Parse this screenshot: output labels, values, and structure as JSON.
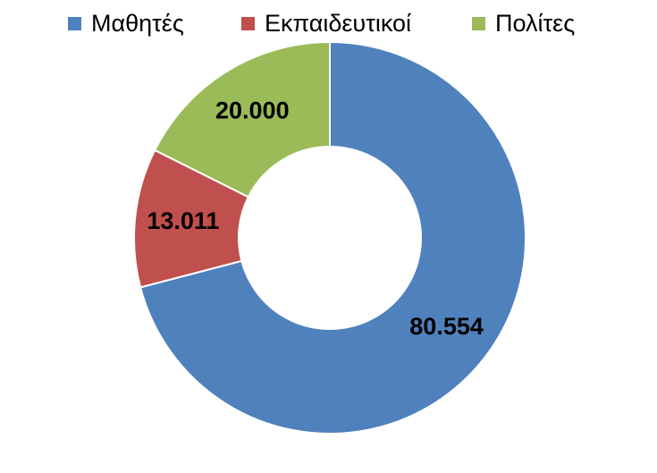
{
  "chart_data": {
    "type": "donut",
    "categories": [
      "Μαθητές",
      "Εκπαιδευτικοί",
      "Πολίτες"
    ],
    "values": [
      80554,
      13011,
      20000
    ],
    "value_labels": [
      "80.554",
      "13.011",
      "20.000"
    ],
    "colors": [
      "#4f81bd",
      "#c0504d",
      "#9bbb59"
    ]
  }
}
